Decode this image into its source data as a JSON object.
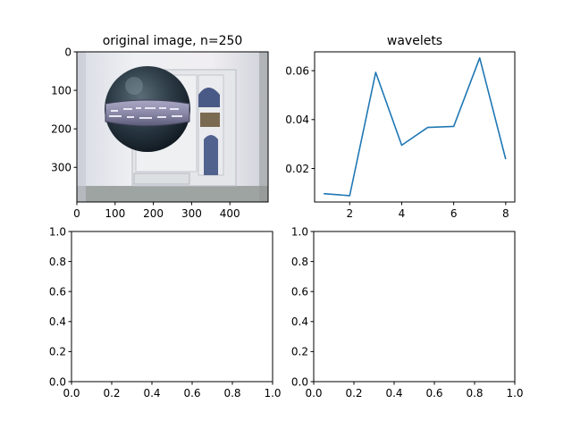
{
  "figure": {
    "background": "#ffffff",
    "line_color": "#1f77b4"
  },
  "chart_data": [
    {
      "type": "image",
      "title": "original image, n=250",
      "image_description": "grey-blue ball with a patterned metal band floating in front of a white doorway with a glass-paned door",
      "xlim": [
        0,
        500
      ],
      "ylim": [
        390,
        0
      ],
      "xticks": [
        0,
        100,
        200,
        300,
        400
      ],
      "yticks": [
        0,
        100,
        200,
        300
      ],
      "grid": false
    },
    {
      "type": "line",
      "title": "wavelets",
      "xlabel": "",
      "ylabel": "",
      "xlim": [
        0.65,
        8.35
      ],
      "ylim": [
        0.0063,
        0.0677
      ],
      "xticks": [
        2,
        4,
        6,
        8
      ],
      "yticks": [
        0.02,
        0.04,
        0.06
      ],
      "ytick_labels": [
        "0.02",
        "0.04",
        "0.06"
      ],
      "grid": false,
      "series": [
        {
          "color": "#1f77b4",
          "x": [
            1,
            2,
            3,
            4,
            5,
            6,
            7,
            8
          ],
          "y": [
            0.0097,
            0.0089,
            0.0593,
            0.0295,
            0.0368,
            0.0372,
            0.0652,
            0.0238
          ]
        }
      ]
    },
    {
      "type": "line",
      "title": "",
      "xlim": [
        0,
        1
      ],
      "ylim": [
        0,
        1
      ],
      "xticks": [
        0.0,
        0.2,
        0.4,
        0.6,
        0.8,
        1.0
      ],
      "yticks": [
        0.0,
        0.2,
        0.4,
        0.6,
        0.8,
        1.0
      ],
      "xtick_labels": [
        "0.0",
        "0.2",
        "0.4",
        "0.6",
        "0.8",
        "1.0"
      ],
      "ytick_labels": [
        "0.0",
        "0.2",
        "0.4",
        "0.6",
        "0.8",
        "1.0"
      ],
      "grid": false,
      "series": []
    },
    {
      "type": "line",
      "title": "",
      "xlim": [
        0,
        1
      ],
      "ylim": [
        0,
        1
      ],
      "xticks": [
        0.0,
        0.2,
        0.4,
        0.6,
        0.8,
        1.0
      ],
      "yticks": [
        0.0,
        0.2,
        0.4,
        0.6,
        0.8,
        1.0
      ],
      "xtick_labels": [
        "0.0",
        "0.2",
        "0.4",
        "0.6",
        "0.8",
        "1.0"
      ],
      "ytick_labels": [
        "0.0",
        "0.2",
        "0.4",
        "0.6",
        "0.8",
        "1.0"
      ],
      "grid": false,
      "series": []
    }
  ]
}
